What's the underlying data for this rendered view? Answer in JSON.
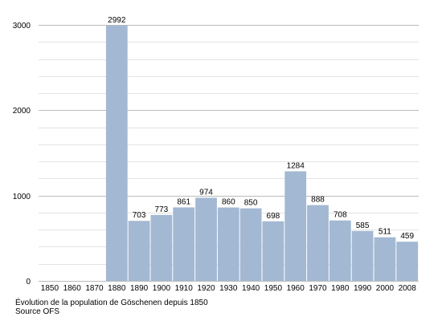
{
  "chart_data": {
    "type": "bar",
    "categories": [
      "1850",
      "1860",
      "1870",
      "1880",
      "1890",
      "1900",
      "1910",
      "1920",
      "1930",
      "1940",
      "1950",
      "1960",
      "1970",
      "1980",
      "1990",
      "2000",
      "2008"
    ],
    "values": [
      null,
      null,
      null,
      2992,
      703,
      773,
      861,
      974,
      860,
      850,
      698,
      1284,
      888,
      708,
      585,
      511,
      459
    ],
    "data_labels": [
      "",
      "",
      "",
      "2992",
      "703",
      "773",
      "861",
      "974",
      "860",
      "850",
      "698",
      "1284",
      "888",
      "708",
      "585",
      "511",
      "459"
    ],
    "title": "",
    "xlabel": "",
    "ylabel": "",
    "ylim": [
      0,
      3000
    ],
    "yticks": [
      0,
      1000,
      2000,
      3000
    ],
    "minor_grid_step": 200,
    "grid": true,
    "legend": "none",
    "bar_color": "#a3b8d2",
    "major_grid_color": "#bbbbbb",
    "minor_grid_color": "#e3e3e3"
  },
  "caption": {
    "line1": "Évolution de la population de Göschenen depuis 1850",
    "line2": "Source OFS"
  }
}
